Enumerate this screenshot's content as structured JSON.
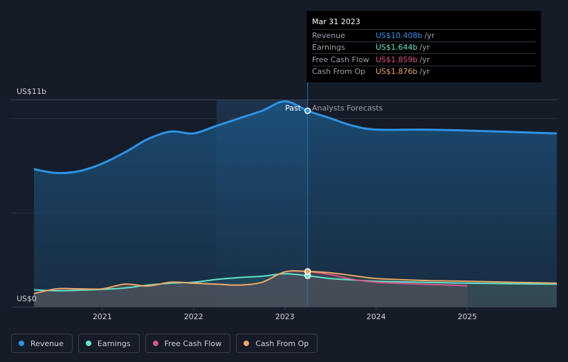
{
  "tooltip": {
    "date": "Mar 31 2023",
    "rows": [
      {
        "label": "Revenue",
        "value": "US$10.408b",
        "unit": "/yr",
        "color": "#2e93e6"
      },
      {
        "label": "Earnings",
        "value": "US$1.644b",
        "unit": "/yr",
        "color": "#5fe6cb"
      },
      {
        "label": "Free Cash Flow",
        "value": "US$1.859b",
        "unit": "/yr",
        "color": "#d8558a"
      },
      {
        "label": "Cash From Op",
        "value": "US$1.876b",
        "unit": "/yr",
        "color": "#e8a864"
      }
    ]
  },
  "markers": {
    "past": "Past",
    "forecast": "Analysts Forecasts"
  },
  "legend": [
    {
      "label": "Revenue",
      "color": "#2e93e6"
    },
    {
      "label": "Earnings",
      "color": "#5fe6cb"
    },
    {
      "label": "Free Cash Flow",
      "color": "#d8558a"
    },
    {
      "label": "Cash From Op",
      "color": "#e8a864"
    }
  ],
  "chart_data": {
    "type": "line",
    "y_unit": "US$ billions",
    "ylim": [
      0,
      11
    ],
    "y_tick_labels": [
      {
        "value": 11,
        "label": "US$11b"
      },
      {
        "value": 0,
        "label": "US$0"
      }
    ],
    "xlim": [
      2020.25,
      2025.98
    ],
    "x_ticks": [
      2021,
      2022,
      2023,
      2024,
      2025
    ],
    "highlight_start": 2022.25,
    "divider": 2023.25,
    "series": [
      {
        "name": "Revenue",
        "color": "#2e93e6",
        "x": [
          2020.25,
          2020.5,
          2020.75,
          2021.0,
          2021.25,
          2021.5,
          2021.75,
          2022.0,
          2022.25,
          2022.5,
          2022.75,
          2023.0,
          2023.25,
          2023.5,
          2023.75,
          2024.0,
          2024.5,
          2025.0,
          2025.98
        ],
        "y": [
          7.3,
          7.1,
          7.2,
          7.6,
          8.2,
          8.9,
          9.3,
          9.2,
          9.6,
          10.0,
          10.4,
          10.9,
          10.4,
          10.0,
          9.6,
          9.4,
          9.4,
          9.35,
          9.2
        ]
      },
      {
        "name": "Earnings",
        "color": "#5fe6cb",
        "x": [
          2020.25,
          2020.5,
          2020.75,
          2021.0,
          2021.25,
          2021.5,
          2021.75,
          2022.0,
          2022.25,
          2022.5,
          2022.75,
          2023.0,
          2023.25,
          2023.5,
          2023.75,
          2024.0,
          2024.5,
          2025.0,
          2025.98
        ],
        "y": [
          0.9,
          0.85,
          0.88,
          0.92,
          1.0,
          1.15,
          1.25,
          1.3,
          1.45,
          1.55,
          1.62,
          1.75,
          1.644,
          1.5,
          1.42,
          1.35,
          1.3,
          1.25,
          1.2
        ]
      },
      {
        "name": "Free Cash Flow",
        "color": "#d8558a",
        "x": [
          2020.25,
          2020.5,
          2020.75,
          2021.0,
          2021.25,
          2021.5,
          2021.75,
          2022.0,
          2022.25,
          2022.5,
          2022.75,
          2023.0,
          2023.25,
          2023.5,
          2023.75,
          2024.0,
          2024.5,
          2025.0
        ],
        "y": [
          0.7,
          0.95,
          0.95,
          0.95,
          1.2,
          1.1,
          1.3,
          1.25,
          1.2,
          1.15,
          1.3,
          1.85,
          1.859,
          1.7,
          1.45,
          1.3,
          1.2,
          1.12
        ]
      },
      {
        "name": "Cash From Op",
        "color": "#e8a864",
        "x": [
          2020.25,
          2020.5,
          2020.75,
          2021.0,
          2021.25,
          2021.5,
          2021.75,
          2022.0,
          2022.25,
          2022.5,
          2022.75,
          2023.0,
          2023.25,
          2023.5,
          2023.75,
          2024.0,
          2024.5,
          2025.0,
          2025.98
        ],
        "y": [
          0.7,
          0.95,
          0.95,
          0.95,
          1.2,
          1.1,
          1.3,
          1.25,
          1.2,
          1.15,
          1.3,
          1.85,
          1.876,
          1.8,
          1.65,
          1.5,
          1.4,
          1.35,
          1.25
        ]
      }
    ]
  }
}
